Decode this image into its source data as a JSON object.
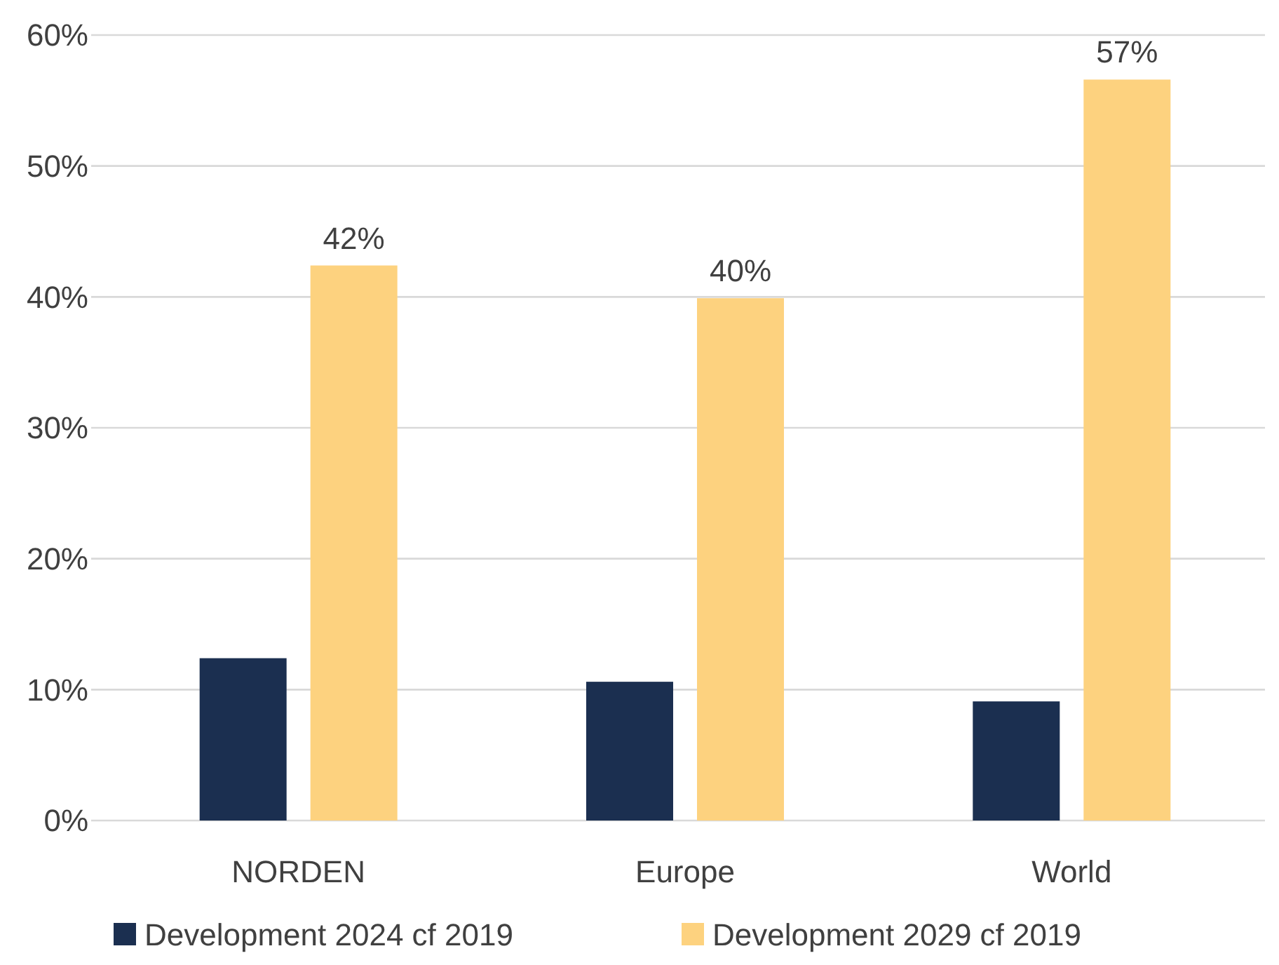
{
  "chart_data": {
    "type": "bar",
    "categories": [
      "NORDEN",
      "Europe",
      "World"
    ],
    "series": [
      {
        "name": "Development 2024 cf 2019",
        "color": "#1b2f50",
        "values": [
          12.4,
          10.6,
          9.1
        ]
      },
      {
        "name": "Development 2029 cf 2019",
        "color": "#fdd27f",
        "values": [
          42.4,
          39.9,
          56.6
        ],
        "value_labels": [
          "42%",
          "40%",
          "57%"
        ]
      }
    ],
    "ylim": [
      0,
      60
    ],
    "yticks": [
      {
        "value": 0,
        "label": "0%"
      },
      {
        "value": 10,
        "label": "10%"
      },
      {
        "value": 20,
        "label": "20%"
      },
      {
        "value": 30,
        "label": "30%"
      },
      {
        "value": 40,
        "label": "40%"
      },
      {
        "value": 50,
        "label": "50%"
      },
      {
        "value": 60,
        "label": "60%"
      }
    ],
    "grid": "y",
    "legend": "bottom"
  }
}
